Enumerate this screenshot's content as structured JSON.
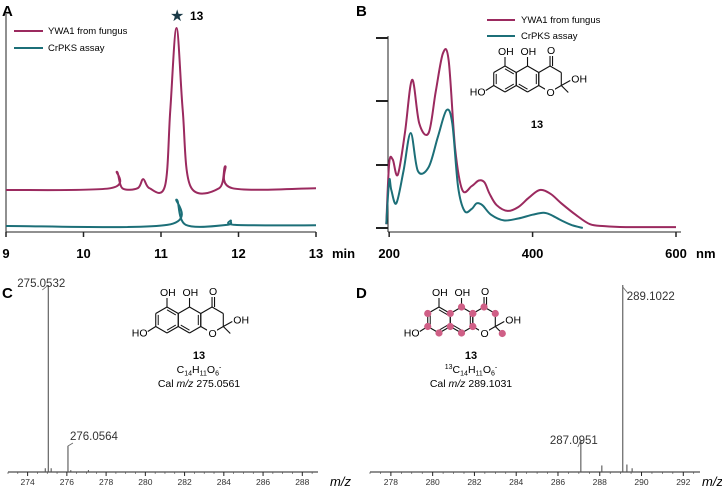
{
  "panels": {
    "A": "A",
    "B": "B",
    "C": "C",
    "D": "D"
  },
  "colors": {
    "purple": "#9b2a5f",
    "teal": "#1c6f78",
    "pink": "#cf5f86",
    "axis": "#222222"
  },
  "chart_data": [
    {
      "panel": "A",
      "type": "line",
      "xlabel": "min",
      "xlim": [
        9,
        13
      ],
      "x_ticks": [
        9,
        10,
        11,
        12,
        13
      ],
      "grid": false,
      "legend": "top-left",
      "annotation": {
        "symbol": "★",
        "label": "13",
        "x": 11.2
      },
      "series": [
        {
          "name": "YWA1 from fungus",
          "color": "#9b2a5f",
          "x": [
            9.0,
            10.35,
            10.43,
            10.5,
            10.7,
            10.77,
            10.85,
            11.05,
            11.12,
            11.2,
            11.28,
            11.38,
            11.75,
            11.83,
            11.92,
            13.0
          ],
          "y": [
            0.11,
            0.12,
            0.21,
            0.12,
            0.12,
            0.17,
            0.12,
            0.13,
            0.55,
            1.0,
            0.55,
            0.13,
            0.12,
            0.24,
            0.12,
            0.12
          ]
        },
        {
          "name": "CrPKS assay",
          "color": "#1c6f78",
          "x": [
            9.0,
            11.08,
            11.2,
            11.32,
            11.85,
            11.9,
            11.96,
            13.0
          ],
          "y": [
            0.0,
            0.005,
            0.12,
            0.005,
            0.005,
            0.025,
            0.005,
            0.003
          ]
        }
      ]
    },
    {
      "panel": "B",
      "type": "line",
      "xlabel": "nm",
      "xlim": [
        190,
        600
      ],
      "x_ticks": [
        200,
        400,
        600
      ],
      "grid": false,
      "legend": "top-right",
      "series": [
        {
          "name": "YWA1 from fungus",
          "color": "#9b2a5f",
          "x": [
            196,
            200,
            205,
            212,
            222,
            232,
            242,
            255,
            265,
            275,
            283,
            292,
            302,
            315,
            325,
            333,
            340,
            350,
            365,
            380,
            395,
            410,
            425,
            440,
            460,
            480,
            500,
            530,
            600
          ],
          "y": [
            0.02,
            0.34,
            0.36,
            0.28,
            0.5,
            0.78,
            0.55,
            0.5,
            0.72,
            0.92,
            0.88,
            0.42,
            0.2,
            0.22,
            0.25,
            0.24,
            0.18,
            0.12,
            0.09,
            0.11,
            0.16,
            0.2,
            0.18,
            0.13,
            0.07,
            0.02,
            0.01,
            0.005,
            0.005
          ]
        },
        {
          "name": "CrPKS assay",
          "color": "#1c6f78",
          "x": [
            196,
            200,
            203,
            210,
            220,
            230,
            240,
            255,
            268,
            280,
            288,
            296,
            305,
            315,
            322,
            330,
            342,
            360,
            380,
            400,
            415,
            425,
            440,
            455,
            470
          ],
          "y": [
            0.02,
            0.25,
            0.2,
            0.13,
            0.3,
            0.5,
            0.3,
            0.32,
            0.48,
            0.62,
            0.55,
            0.22,
            0.09,
            0.1,
            0.13,
            0.12,
            0.07,
            0.04,
            0.05,
            0.07,
            0.08,
            0.07,
            0.04,
            0.015,
            0.0
          ]
        }
      ]
    },
    {
      "panel": "C",
      "type": "bar",
      "xlabel": "m/z",
      "xlim": [
        273,
        288.8
      ],
      "x_ticks": [
        274,
        276,
        278,
        280,
        282,
        284,
        286,
        288
      ],
      "grid": false,
      "peaks": [
        {
          "x": 274.9,
          "y": 0.02
        },
        {
          "x": 275.0532,
          "y": 1.0
        },
        {
          "x": 275.2,
          "y": 0.02
        },
        {
          "x": 276.0564,
          "y": 0.14
        },
        {
          "x": 276.2,
          "y": 0.01
        },
        {
          "x": 277.1,
          "y": 0.01
        }
      ],
      "labels": [
        {
          "text": "275.0532",
          "x": 275.0532
        },
        {
          "text": "276.0564",
          "x": 276.0564
        }
      ]
    },
    {
      "panel": "D",
      "type": "bar",
      "xlabel": "m/z",
      "xlim": [
        277,
        292.8
      ],
      "x_ticks": [
        278,
        280,
        282,
        284,
        286,
        288,
        290,
        292
      ],
      "grid": false,
      "peaks": [
        {
          "x": 287.0951,
          "y": 0.17
        },
        {
          "x": 288.1,
          "y": 0.035
        },
        {
          "x": 289.1022,
          "y": 1.0
        },
        {
          "x": 289.3,
          "y": 0.04
        },
        {
          "x": 289.55,
          "y": 0.02
        }
      ],
      "labels": [
        {
          "text": "289.1022",
          "x": 289.1022
        },
        {
          "text": "287.0951",
          "x": 287.0951
        }
      ]
    }
  ],
  "molecule_b": {
    "label": "13",
    "oh": "OH",
    "ho": "HO",
    "o": "O"
  },
  "molecule_c": {
    "label": "13",
    "formula_prefix": "C",
    "formula_sub1": "14",
    "formula_mid": "H",
    "formula_sub2": "11",
    "formula_mid2": "O",
    "formula_sub3": "6",
    "formula_sup": "-",
    "cal_prefix": "Cal ",
    "cal_mz": "m/z",
    "cal_value": " 275.0561",
    "oh": "OH",
    "ho": "HO",
    "o": "O"
  },
  "molecule_d": {
    "label": "13",
    "iso_sup": "13",
    "formula_prefix": "C",
    "formula_sub1": "14",
    "formula_mid": "H",
    "formula_sub2": "11",
    "formula_mid2": "O",
    "formula_sub3": "6",
    "formula_sup": "-",
    "cal_prefix": "Cal ",
    "cal_mz": "m/z",
    "cal_value": " 289.1031",
    "oh": "OH",
    "ho": "HO",
    "o": "O"
  }
}
